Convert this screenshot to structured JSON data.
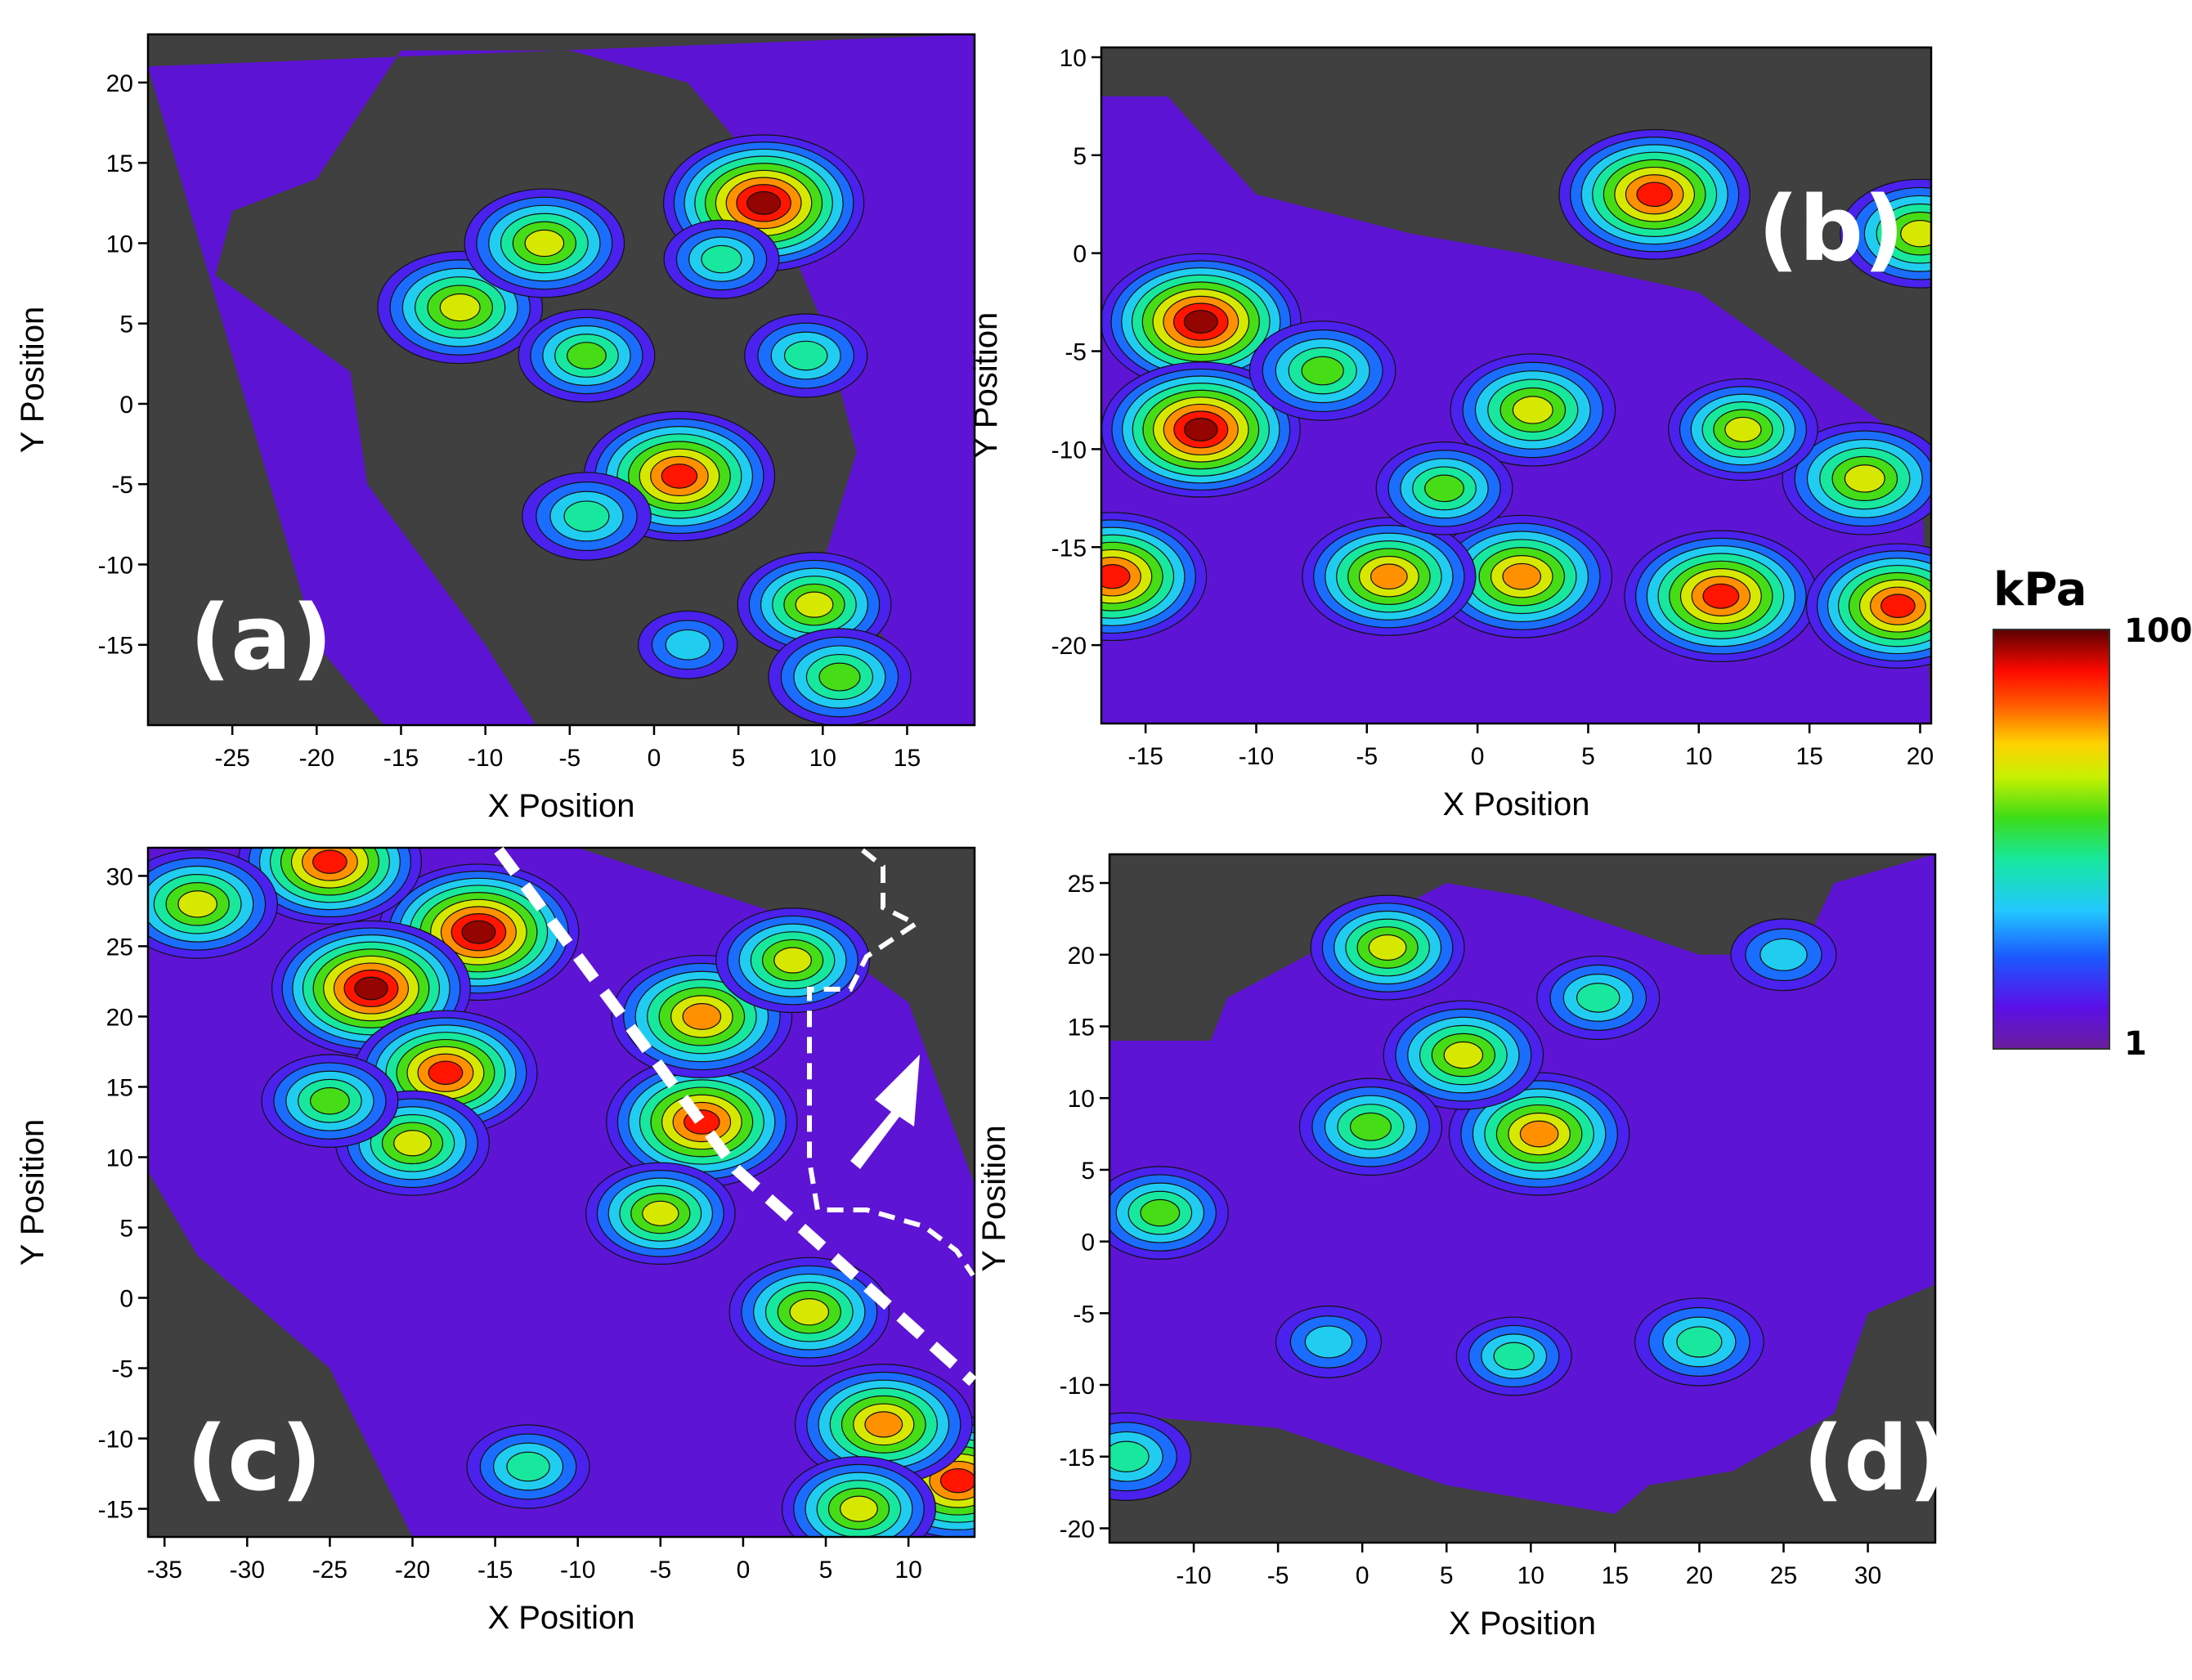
{
  "chart_data": [
    {
      "type": "heatmap",
      "panel_label": "(a)",
      "xlabel": "X Position",
      "ylabel": "Y Position",
      "xlim": [
        -30,
        19
      ],
      "ylim": [
        -20,
        23
      ],
      "xticks": [
        -25,
        -20,
        -15,
        -10,
        -5,
        0,
        5,
        10,
        15
      ],
      "yticks": [
        -15,
        -10,
        -5,
        0,
        5,
        10,
        15,
        20
      ],
      "peaks": [
        {
          "x": 6.5,
          "y": 12.5,
          "value": 100
        },
        {
          "x": 1.5,
          "y": -4.5,
          "value": 75
        },
        {
          "x": -11.5,
          "y": 6,
          "value": 35
        },
        {
          "x": -6.5,
          "y": 10,
          "value": 30
        },
        {
          "x": 9.5,
          "y": -12.5,
          "value": 25
        },
        {
          "x": 11,
          "y": -17,
          "value": 18
        },
        {
          "x": -4,
          "y": 3,
          "value": 15
        },
        {
          "x": -4,
          "y": -7,
          "value": 12
        },
        {
          "x": 9,
          "y": 3,
          "value": 10
        },
        {
          "x": 4,
          "y": 9,
          "value": 8
        },
        {
          "x": 2,
          "y": -15,
          "value": 5
        }
      ]
    },
    {
      "type": "heatmap",
      "panel_label": "(b)",
      "xlabel": "X Position",
      "ylabel": "Y Position",
      "xlim": [
        -17,
        20.5
      ],
      "ylim": [
        -24,
        10.5
      ],
      "xticks": [
        -15,
        -10,
        -5,
        0,
        5,
        10,
        15,
        20
      ],
      "yticks": [
        -20,
        -15,
        -10,
        -5,
        0,
        5,
        10
      ],
      "peaks": [
        {
          "x": -12.5,
          "y": -3.5,
          "value": 100
        },
        {
          "x": -12.5,
          "y": -9,
          "value": 95
        },
        {
          "x": -16.5,
          "y": -16.5,
          "value": 70
        },
        {
          "x": 11,
          "y": -17.5,
          "value": 80
        },
        {
          "x": 8,
          "y": 3,
          "value": 75
        },
        {
          "x": 2,
          "y": -16.5,
          "value": 55
        },
        {
          "x": -4,
          "y": -16.5,
          "value": 45
        },
        {
          "x": 19,
          "y": -18,
          "value": 60
        },
        {
          "x": 17.5,
          "y": -11.5,
          "value": 35
        },
        {
          "x": 2.5,
          "y": -8,
          "value": 35
        },
        {
          "x": 20,
          "y": 1,
          "value": 30
        },
        {
          "x": -7,
          "y": -6,
          "value": 20
        },
        {
          "x": 12,
          "y": -9,
          "value": 22
        },
        {
          "x": -1.5,
          "y": -12,
          "value": 15
        }
      ]
    },
    {
      "type": "heatmap",
      "panel_label": "(c)",
      "xlabel": "X Position",
      "ylabel": "Y Position",
      "xlim": [
        -36,
        14
      ],
      "ylim": [
        -17,
        32
      ],
      "xticks": [
        -35,
        -30,
        -25,
        -20,
        -15,
        -10,
        -5,
        0,
        5,
        10
      ],
      "yticks": [
        -15,
        -10,
        -5,
        0,
        5,
        10,
        15,
        20,
        25,
        30
      ],
      "peaks": [
        {
          "x": -16,
          "y": 26,
          "value": 100
        },
        {
          "x": -22.5,
          "y": 22,
          "value": 95
        },
        {
          "x": -2.5,
          "y": 12.5,
          "value": 75
        },
        {
          "x": -18,
          "y": 16,
          "value": 60
        },
        {
          "x": -2.5,
          "y": 20,
          "value": 55
        },
        {
          "x": 13,
          "y": -13,
          "value": 70
        },
        {
          "x": 8.5,
          "y": -9,
          "value": 50
        },
        {
          "x": -25,
          "y": 31,
          "value": 60
        },
        {
          "x": -33,
          "y": 28,
          "value": 30
        },
        {
          "x": 3,
          "y": 24,
          "value": 25
        },
        {
          "x": -20,
          "y": 11,
          "value": 25
        },
        {
          "x": 4,
          "y": -1,
          "value": 30
        },
        {
          "x": 7,
          "y": -15,
          "value": 25
        },
        {
          "x": -5,
          "y": 6,
          "value": 22
        },
        {
          "x": -25,
          "y": 14,
          "value": 15
        },
        {
          "x": -13,
          "y": -12,
          "value": 10
        }
      ]
    },
    {
      "type": "heatmap",
      "panel_label": "(d)",
      "xlabel": "X Position",
      "ylabel": "Y Position",
      "xlim": [
        -15,
        34
      ],
      "ylim": [
        -21,
        27
      ],
      "xticks": [
        -10,
        -5,
        0,
        5,
        10,
        15,
        20,
        25,
        30
      ],
      "yticks": [
        -20,
        -15,
        -10,
        -5,
        0,
        5,
        10,
        15,
        20,
        25
      ],
      "peaks": [
        {
          "x": 10.5,
          "y": 7.5,
          "value": 55
        },
        {
          "x": 6,
          "y": 13,
          "value": 30
        },
        {
          "x": 1.5,
          "y": 20.5,
          "value": 25
        },
        {
          "x": 0.5,
          "y": 8,
          "value": 18
        },
        {
          "x": -12,
          "y": 2,
          "value": 15
        },
        {
          "x": -14,
          "y": -15,
          "value": 12
        },
        {
          "x": 20,
          "y": -7,
          "value": 12
        },
        {
          "x": 14,
          "y": 17,
          "value": 10
        },
        {
          "x": 9,
          "y": -8,
          "value": 8
        },
        {
          "x": -2,
          "y": -7,
          "value": 6
        },
        {
          "x": 25,
          "y": 20,
          "value": 6
        }
      ]
    }
  ],
  "colorbar": {
    "title": "kPa",
    "max_label": "100",
    "min_label": "1",
    "scale": "log"
  }
}
